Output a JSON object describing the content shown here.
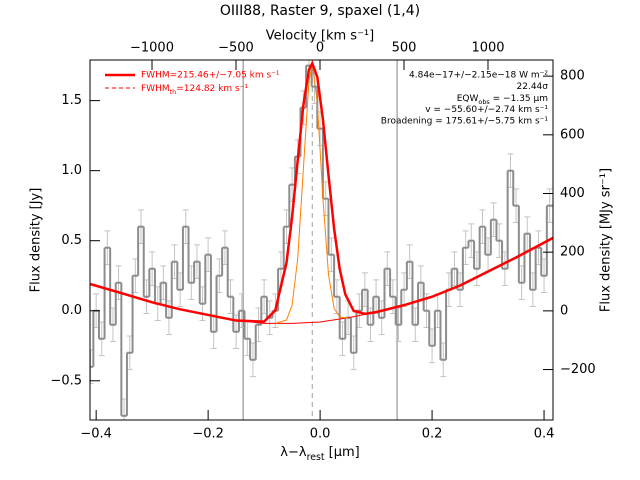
{
  "chart_data": {
    "type": "spectrum",
    "title": "OIII88, Raster 9, spaxel (1,4)",
    "xlabel": [
      "λ−λ",
      "rest",
      " [μm]"
    ],
    "x2label": "Velocity [km s⁻¹]",
    "ylabel": "Flux density [Jy]",
    "y2label": "Flux density [MJy sr⁻¹]",
    "xlim": [
      -0.411,
      0.416
    ],
    "x2lim": [
      -1369,
      1387
    ],
    "ylim": [
      -0.78,
      1.79
    ],
    "y2lim": [
      -372,
      855
    ],
    "xticks": [
      {
        "value": -0.4,
        "label": "−0.4"
      },
      {
        "value": -0.2,
        "label": "−0.2"
      },
      {
        "value": 0,
        "label": "0.0"
      },
      0.2,
      0.4
    ],
    "x2ticks": [
      {
        "value": -1000,
        "label": "−1000"
      },
      {
        "value": -500,
        "label": "−500"
      },
      0,
      500,
      1000
    ],
    "yticks": [
      {
        "value": -0.5,
        "label": "−0.5"
      },
      {
        "value": 0,
        "label": "0.0"
      },
      0.5,
      {
        "value": 1,
        "label": "1.0"
      },
      1.5
    ],
    "y2ticks": [
      {
        "value": -200,
        "label": "−200"
      },
      0,
      200,
      400,
      600,
      800
    ],
    "legend": "upper left",
    "annotations": [
      "4.84e−17+/−2.15e−18 W m⁻²",
      "22.44σ",
      [
        "EQW",
        "obs",
        " = −1.35 μm"
      ],
      "v = −55.60+/−2.74 km s⁻¹",
      "Broadening = 175.61+/−5.75 km s⁻¹"
    ],
    "vlines": {
      "values": [
        -0.1375,
        0.1375
      ],
      "color": "#808080"
    },
    "center_line": {
      "value": -0.014,
      "color": "#a0a0a0",
      "dash": true
    },
    "spectrum": {
      "color": "#8c8c8c",
      "error_color": "#c4c4c4",
      "error": 0.12,
      "x": [
        -0.41,
        -0.4,
        -0.39,
        -0.38,
        -0.37,
        -0.36,
        -0.35,
        -0.34,
        -0.33,
        -0.32,
        -0.31,
        -0.3,
        -0.29,
        -0.28,
        -0.27,
        -0.26,
        -0.25,
        -0.24,
        -0.23,
        -0.22,
        -0.21,
        -0.2,
        -0.19,
        -0.18,
        -0.17,
        -0.16,
        -0.15,
        -0.14,
        -0.13,
        -0.12,
        -0.11,
        -0.1,
        -0.09,
        -0.08,
        -0.07,
        -0.06,
        -0.05,
        -0.04,
        -0.03,
        -0.02,
        -0.01,
        0,
        0.01,
        0.02,
        0.03,
        0.04,
        0.05,
        0.06,
        0.07,
        0.08,
        0.09,
        0.1,
        0.11,
        0.12,
        0.13,
        0.14,
        0.15,
        0.16,
        0.17,
        0.18,
        0.19,
        0.2,
        0.21,
        0.22,
        0.23,
        0.24,
        0.25,
        0.26,
        0.27,
        0.28,
        0.29,
        0.3,
        0.31,
        0.32,
        0.33,
        0.34,
        0.35,
        0.36,
        0.37,
        0.38,
        0.39,
        0.4,
        0.41
      ],
      "values": [
        -0.4,
        0,
        -0.2,
        0.45,
        -0.1,
        0.2,
        -0.75,
        -0.3,
        0.25,
        0.6,
        0.1,
        0.3,
        0.05,
        0.2,
        -0.05,
        0.35,
        0.15,
        0.6,
        0.2,
        0.35,
        0.05,
        0.4,
        -0.15,
        0.25,
        0.45,
        0.1,
        -0.15,
        0,
        -0.2,
        -0.35,
        -0.1,
        0.1,
        -0.05,
        0,
        0.3,
        0.6,
        0.9,
        1.1,
        1.45,
        1.75,
        1.6,
        1.3,
        0.8,
        0.4,
        0.1,
        -0.2,
        -0.05,
        -0.3,
        0,
        0.15,
        -0.1,
        0.1,
        -0.05,
        0.3,
        0.1,
        -0.1,
        0.15,
        0.35,
        -0.1,
        0.2,
        0,
        -0.25,
        0,
        -0.35,
        0.15,
        0.3,
        0.15,
        0.45,
        0.5,
        0.3,
        0.6,
        0.4,
        0.65,
        0.5,
        0.3,
        1,
        0.75,
        0.2,
        0.55,
        0.15,
        0.45,
        0.25,
        0.75
      ]
    },
    "series": [
      {
        "name": "FWHM=215.46+/−7.05 km s⁻¹",
        "color": "#ff0000",
        "width": 2.5,
        "x": [
          -0.41,
          -0.35,
          -0.3,
          -0.25,
          -0.2,
          -0.15,
          -0.1,
          -0.08,
          -0.06,
          -0.05,
          -0.04,
          -0.03,
          -0.02,
          -0.014,
          -0.005,
          0.005,
          0.015,
          0.025,
          0.035,
          0.045,
          0.06,
          0.08,
          0.1,
          0.15,
          0.2,
          0.25,
          0.3,
          0.35,
          0.416
        ],
        "values": [
          0.19,
          0.12,
          0.06,
          0.01,
          -0.03,
          -0.07,
          -0.078,
          0.003,
          0.343,
          0.67,
          1.073,
          1.464,
          1.72,
          1.766,
          1.668,
          1.367,
          0.968,
          0.587,
          0.298,
          0.117,
          -0.001,
          -0.022,
          -0.01,
          0.04,
          0.1,
          0.18,
          0.28,
          0.38,
          0.52
        ]
      },
      {
        "name": [
          "FWHM",
          "th",
          "=124.82 km s⁻¹"
        ],
        "color": "#ff8000",
        "legend_color": "#ff0000",
        "legend_dash": true,
        "width": 1,
        "x": [
          -0.08,
          -0.06,
          -0.05,
          -0.04,
          -0.03,
          -0.02,
          -0.014,
          -0.005,
          0.005,
          0.015,
          0.025,
          0.035,
          0.05
        ],
        "values": [
          -0.09,
          -0.066,
          0.039,
          0.372,
          1.005,
          1.633,
          1.766,
          1.485,
          0.805,
          0.258,
          0.017,
          -0.046,
          -0.053
        ]
      }
    ],
    "baseline": {
      "color": "#ff0000",
      "width": 1,
      "x": [
        -0.41,
        -0.35,
        -0.3,
        -0.25,
        -0.2,
        -0.15,
        -0.1,
        -0.05,
        0,
        0.05,
        0.1,
        0.15,
        0.2,
        0.25,
        0.3,
        0.35,
        0.416
      ],
      "values": [
        0.19,
        0.12,
        0.06,
        0.01,
        -0.03,
        -0.07,
        -0.09,
        -0.09,
        -0.08,
        -0.05,
        -0.01,
        0.04,
        0.1,
        0.18,
        0.28,
        0.38,
        0.52
      ]
    }
  }
}
